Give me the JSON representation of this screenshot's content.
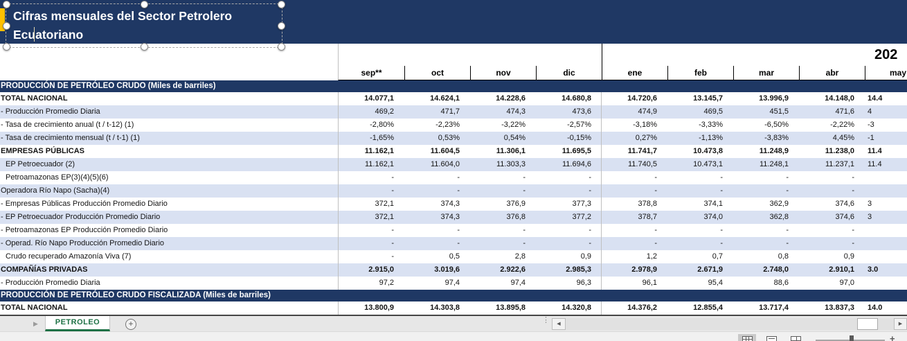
{
  "title_box": {
    "text": "Cifras mensuales del Sector Petrolero Ecuatoriano"
  },
  "header": {
    "year_label": "202",
    "months": [
      "sep**",
      "oct",
      "nov",
      "dic",
      "ene",
      "feb",
      "mar",
      "abr",
      "may"
    ]
  },
  "table": {
    "rows": [
      {
        "type": "section",
        "label": "PRODUCCIÓN DE PETRÓLEO CRUDO (Miles de barriles)"
      },
      {
        "type": "data",
        "label": "TOTAL NACIONAL",
        "bold": true,
        "shade": false,
        "indent": false,
        "values": [
          "14.077,1",
          "14.624,1",
          "14.228,6",
          "14.680,8",
          "14.720,6",
          "13.145,7",
          "13.996,9",
          "14.148,0",
          "14.4"
        ]
      },
      {
        "type": "data",
        "label": "- Producción Promedio Diaria",
        "bold": false,
        "shade": true,
        "indent": false,
        "values": [
          "469,2",
          "471,7",
          "474,3",
          "473,6",
          "474,9",
          "469,5",
          "451,5",
          "471,6",
          "4"
        ]
      },
      {
        "type": "data",
        "label": "- Tasa de crecimiento anual (t / t-12) (1)",
        "bold": false,
        "shade": false,
        "indent": false,
        "values": [
          "-2,80%",
          "-2,23%",
          "-3,22%",
          "-2,57%",
          "-3,18%",
          "-3,33%",
          "-6,50%",
          "-2,22%",
          "-3"
        ]
      },
      {
        "type": "data",
        "label": "- Tasa de crecimiento mensual (t / t-1) (1)",
        "bold": false,
        "shade": true,
        "indent": false,
        "values": [
          "-1,65%",
          "0,53%",
          "0,54%",
          "-0,15%",
          "0,27%",
          "-1,13%",
          "-3,83%",
          "4,45%",
          "-1"
        ]
      },
      {
        "type": "data",
        "label": "EMPRESAS PÚBLICAS",
        "bold": true,
        "shade": false,
        "indent": false,
        "values": [
          "11.162,1",
          "11.604,5",
          "11.306,1",
          "11.695,5",
          "11.741,7",
          "10.473,8",
          "11.248,9",
          "11.238,0",
          "11.4"
        ]
      },
      {
        "type": "data",
        "label": "EP Petroecuador (2)",
        "bold": false,
        "shade": true,
        "indent": true,
        "values": [
          "11.162,1",
          "11.604,0",
          "11.303,3",
          "11.694,6",
          "11.740,5",
          "10.473,1",
          "11.248,1",
          "11.237,1",
          "11.4"
        ]
      },
      {
        "type": "data",
        "label": "Petroamazonas EP(3)(4)(5)(6)",
        "bold": false,
        "shade": false,
        "indent": true,
        "values": [
          "-",
          "-",
          "-",
          "-",
          "-",
          "-",
          "-",
          "-",
          ""
        ]
      },
      {
        "type": "data",
        "label": "Operadora Río Napo (Sacha)(4)",
        "bold": false,
        "shade": true,
        "indent": false,
        "values": [
          "-",
          "-",
          "-",
          "-",
          "-",
          "-",
          "-",
          "-",
          ""
        ]
      },
      {
        "type": "data",
        "label": "- Empresas Públicas Producción Promedio Diario",
        "bold": false,
        "shade": false,
        "indent": false,
        "values": [
          "372,1",
          "374,3",
          "376,9",
          "377,3",
          "378,8",
          "374,1",
          "362,9",
          "374,6",
          "3"
        ]
      },
      {
        "type": "data",
        "label": "- EP Petroecuador Producción Promedio Diario",
        "bold": false,
        "shade": true,
        "indent": false,
        "values": [
          "372,1",
          "374,3",
          "376,8",
          "377,2",
          "378,7",
          "374,0",
          "362,8",
          "374,6",
          "3"
        ]
      },
      {
        "type": "data",
        "label": "- Petroamazonas EP Producción Promedio Diario",
        "bold": false,
        "shade": false,
        "indent": false,
        "values": [
          "-",
          "-",
          "-",
          "-",
          "-",
          "-",
          "-",
          "-",
          ""
        ]
      },
      {
        "type": "data",
        "label": "- Operad. Río Napo Producción Promedio Diario",
        "bold": false,
        "shade": true,
        "indent": false,
        "values": [
          "-",
          "-",
          "-",
          "-",
          "-",
          "-",
          "-",
          "-",
          ""
        ]
      },
      {
        "type": "data",
        "label": "Crudo recuperado Amazonía Viva (7)",
        "bold": false,
        "shade": false,
        "indent": true,
        "values": [
          "-",
          "0,5",
          "2,8",
          "0,9",
          "1,2",
          "0,7",
          "0,8",
          "0,9",
          ""
        ]
      },
      {
        "type": "data",
        "label": "COMPAÑÍAS PRIVADAS",
        "bold": true,
        "shade": true,
        "indent": false,
        "values": [
          "2.915,0",
          "3.019,6",
          "2.922,6",
          "2.985,3",
          "2.978,9",
          "2.671,9",
          "2.748,0",
          "2.910,1",
          "3.0"
        ]
      },
      {
        "type": "data",
        "label": "- Producción Promedio Diaria",
        "bold": false,
        "shade": false,
        "indent": false,
        "values": [
          "97,2",
          "97,4",
          "97,4",
          "96,3",
          "96,1",
          "95,4",
          "88,6",
          "97,0",
          ""
        ]
      },
      {
        "type": "section",
        "label": "PRODUCCIÓN DE PETRÓLEO CRUDO FISCALIZADA (Miles de barriles)"
      },
      {
        "type": "data",
        "label": "TOTAL NACIONAL",
        "bold": true,
        "shade": false,
        "indent": false,
        "values": [
          "13.800,9",
          "14.303,8",
          "13.895,8",
          "14.320,8",
          "14.376,2",
          "12.855,4",
          "13.717,4",
          "13.837,3",
          "14.0"
        ]
      }
    ]
  },
  "sheet_bar": {
    "tab_label": "PETROLEO",
    "nav_arrow": "▶",
    "add_icon": "+",
    "splitter_dots": "⋮",
    "scroll_left": "◀",
    "scroll_right": "▶"
  },
  "status_bar": {
    "zoom_plus": "+"
  },
  "colors": {
    "navy": "#1F3864",
    "row_blue": "#D9E1F2",
    "tab_green": "#1E7145",
    "gold": "#FFC000"
  }
}
